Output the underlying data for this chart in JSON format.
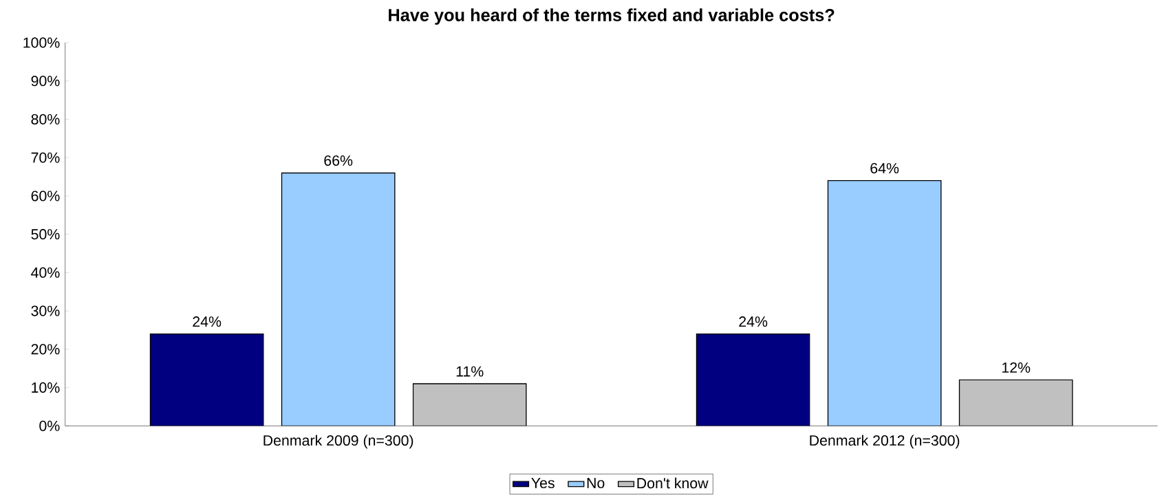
{
  "chart_data": {
    "type": "bar",
    "title": "Have you heard of the terms fixed and variable costs?",
    "categories": [
      "Denmark 2009 (n=300)",
      "Denmark 2012 (n=300)"
    ],
    "series": [
      {
        "name": "Yes",
        "color": "#000080",
        "values": [
          24,
          24
        ],
        "value_labels": [
          "24%",
          "24%"
        ]
      },
      {
        "name": "No",
        "color": "#99ccff",
        "values": [
          66,
          64
        ],
        "value_labels": [
          "66%",
          "64%"
        ]
      },
      {
        "name": "Don't know",
        "color": "#c0c0c0",
        "values": [
          11,
          12
        ],
        "value_labels": [
          "11%",
          "12%"
        ]
      }
    ],
    "ylim": [
      0,
      100
    ],
    "yticks": [
      {
        "value": 0,
        "label": "0%"
      },
      {
        "value": 10,
        "label": "10%"
      },
      {
        "value": 20,
        "label": "20%"
      },
      {
        "value": 30,
        "label": "30%"
      },
      {
        "value": 40,
        "label": "40%"
      },
      {
        "value": 50,
        "label": "50%"
      },
      {
        "value": 60,
        "label": "60%"
      },
      {
        "value": 70,
        "label": "70%"
      },
      {
        "value": 80,
        "label": "80%"
      },
      {
        "value": 90,
        "label": "90%"
      },
      {
        "value": 100,
        "label": "100%"
      }
    ],
    "legend": "bottom"
  }
}
